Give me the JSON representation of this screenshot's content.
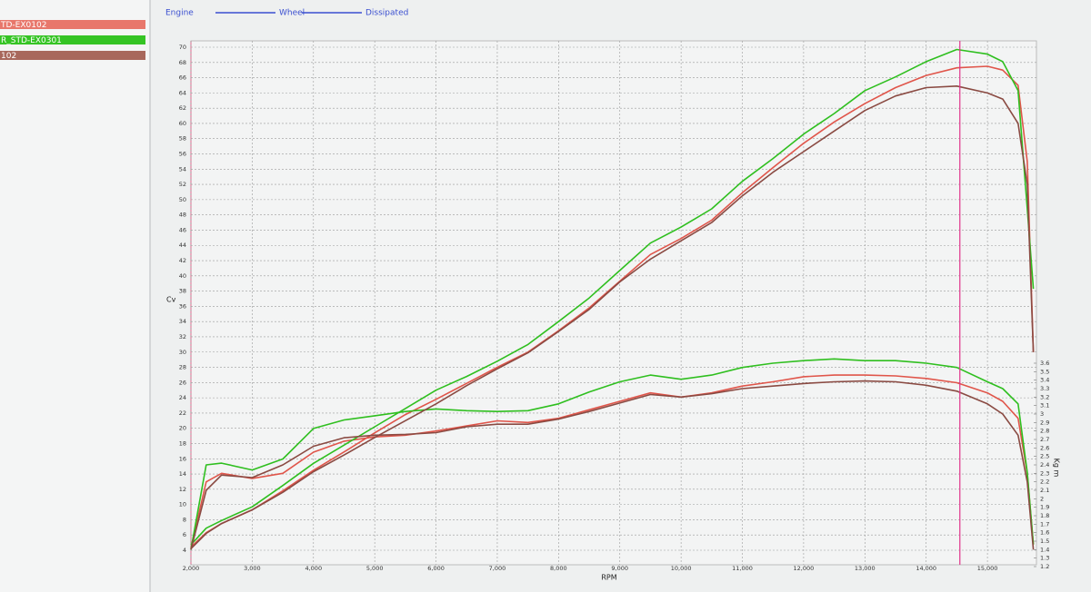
{
  "chart_data": {
    "type": "line",
    "legend": [
      {
        "name": "TD-EX0102",
        "color": "#e8776b"
      },
      {
        "name": "R_STD-EX0301",
        "color": "#35c424"
      },
      {
        "name": "102",
        "color": "#a8685c"
      }
    ],
    "header_legend": [
      {
        "name": "Engine",
        "color": "#3a4fd0"
      },
      {
        "name": "Wheel",
        "color": "#3a4fd0"
      },
      {
        "name": "Dissipated",
        "color": "#3a4fd0"
      }
    ],
    "y_label": "Cv",
    "y2_label": "Kg m",
    "x_label": "RPM",
    "xlim": [
      2000,
      15800
    ],
    "xticks": [
      {
        "value": 2000,
        "label": "2,000"
      },
      {
        "value": 3000,
        "label": "3,000"
      },
      {
        "value": 4000,
        "label": "4,000"
      },
      {
        "value": 5000,
        "label": "5,000"
      },
      {
        "value": 6000,
        "label": "6,000"
      },
      {
        "value": 7000,
        "label": "7,000"
      },
      {
        "value": 8000,
        "label": "8,000"
      },
      {
        "value": 9000,
        "label": "9,000"
      },
      {
        "value": 10000,
        "label": "10,000"
      },
      {
        "value": 11000,
        "label": "11,000"
      },
      {
        "value": 12000,
        "label": "12,000"
      },
      {
        "value": 13000,
        "label": "13,000"
      },
      {
        "value": 14000,
        "label": "14,000"
      },
      {
        "value": 15000,
        "label": "15,000"
      }
    ],
    "ylim": [
      4,
      70
    ],
    "yticks": [
      4,
      6,
      8,
      10,
      12,
      14,
      16,
      18,
      20,
      22,
      24,
      26,
      28,
      30,
      32,
      34,
      36,
      38,
      40,
      42,
      44,
      46,
      48,
      50,
      52,
      54,
      56,
      58,
      60,
      62,
      64,
      66,
      68,
      70
    ],
    "y2lim": [
      1.2,
      3.6
    ],
    "y2ticks": [
      1.2,
      1.3,
      1.4,
      1.5,
      1.6,
      1.7,
      1.8,
      1.9,
      2,
      2.1,
      2.2,
      2.3,
      2.4,
      2.5,
      2.6,
      2.7,
      2.8,
      2.9,
      3,
      3.1,
      3.2,
      3.3,
      3.4,
      3.5,
      3.6
    ],
    "grid": true,
    "cursor_x": 14550,
    "cursor_color": "#e0338a",
    "x": [
      2000,
      2250,
      2500,
      3000,
      3500,
      4000,
      4500,
      5000,
      5500,
      6000,
      6500,
      7000,
      7500,
      8000,
      8500,
      9000,
      9500,
      10000,
      10500,
      11000,
      11500,
      12000,
      12500,
      13000,
      13500,
      14000,
      14500,
      15000,
      15250,
      15500,
      15650,
      15750
    ],
    "series": [
      {
        "name": "TD-EX0102",
        "color": "#e0554a",
        "values": [
          4.4,
          6.3,
          7.5,
          9.3,
          11.8,
          14.5,
          16.9,
          19.4,
          21.8,
          23.8,
          25.9,
          28.0,
          30.0,
          32.8,
          35.8,
          39.3,
          42.8,
          44.9,
          47.3,
          50.9,
          54.2,
          57.4,
          60.2,
          62.6,
          64.7,
          66.3,
          67.3,
          67.5,
          67.0,
          65.0,
          55.0,
          30.0
        ],
        "y2_values": [
          1.42,
          2.2,
          2.3,
          2.24,
          2.3,
          2.55,
          2.68,
          2.73,
          2.75,
          2.8,
          2.86,
          2.92,
          2.9,
          2.95,
          3.05,
          3.15,
          3.25,
          3.2,
          3.25,
          3.33,
          3.38,
          3.44,
          3.46,
          3.46,
          3.45,
          3.42,
          3.37,
          3.25,
          3.15,
          2.95,
          2.3,
          1.46
        ]
      },
      {
        "name": "R_STD-EX0301",
        "color": "#2fbf1f",
        "values": [
          4.7,
          6.9,
          7.9,
          9.7,
          12.5,
          15.4,
          17.8,
          20.2,
          22.6,
          25.0,
          26.8,
          28.8,
          31.0,
          34.0,
          37.1,
          40.7,
          44.3,
          46.4,
          48.8,
          52.4,
          55.4,
          58.6,
          61.3,
          64.3,
          66.1,
          68.1,
          69.7,
          69.1,
          68.1,
          64.3,
          48.8,
          38.3
        ],
        "y2_values": [
          1.4,
          2.4,
          2.42,
          2.34,
          2.47,
          2.83,
          2.93,
          2.98,
          3.03,
          3.06,
          3.04,
          3.03,
          3.04,
          3.12,
          3.26,
          3.38,
          3.46,
          3.41,
          3.46,
          3.55,
          3.6,
          3.63,
          3.65,
          3.63,
          3.63,
          3.6,
          3.55,
          3.38,
          3.3,
          3.12,
          2.31,
          1.46
        ]
      },
      {
        "name": "102",
        "color": "#8a4a42",
        "values": [
          4.2,
          6.2,
          7.5,
          9.3,
          11.6,
          14.3,
          16.5,
          18.8,
          21.0,
          23.2,
          25.6,
          27.8,
          29.9,
          32.7,
          35.6,
          39.2,
          42.2,
          44.6,
          47.0,
          50.5,
          53.6,
          56.3,
          59.0,
          61.7,
          63.6,
          64.7,
          64.9,
          64.0,
          63.2,
          60.0,
          52.0,
          30.0
        ],
        "y2_values": [
          1.4,
          2.1,
          2.28,
          2.25,
          2.4,
          2.62,
          2.72,
          2.75,
          2.76,
          2.78,
          2.85,
          2.88,
          2.88,
          2.94,
          3.03,
          3.13,
          3.23,
          3.2,
          3.24,
          3.3,
          3.33,
          3.36,
          3.38,
          3.39,
          3.38,
          3.34,
          3.27,
          3.12,
          3.0,
          2.75,
          2.2,
          1.4
        ]
      }
    ]
  }
}
